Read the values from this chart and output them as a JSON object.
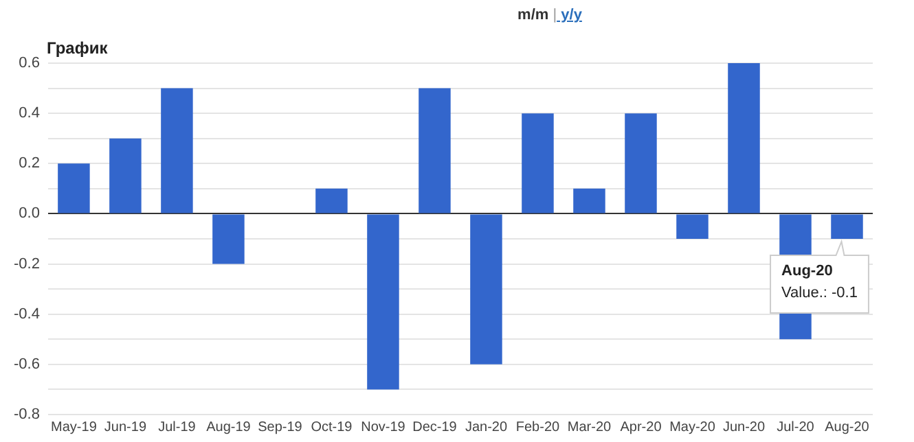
{
  "chart_data": {
    "type": "bar",
    "title": "График",
    "categories": [
      "May-19",
      "Jun-19",
      "Jul-19",
      "Aug-19",
      "Sep-19",
      "Oct-19",
      "Nov-19",
      "Dec-19",
      "Jan-20",
      "Feb-20",
      "Mar-20",
      "Apr-20",
      "May-20",
      "Jun-20",
      "Jul-20",
      "Aug-20"
    ],
    "values": [
      0.2,
      0.3,
      0.5,
      -0.2,
      0,
      0.1,
      -0.7,
      0.5,
      -0.6,
      0.4,
      0.1,
      0.4,
      -0.1,
      0.6,
      -0.5,
      -0.1
    ],
    "color": "#3366cc",
    "ylim": [
      -0.8,
      0.6
    ],
    "yticks": [
      -0.8,
      {
        "value": -0.7,
        "label": null
      },
      -0.6,
      {
        "value": -0.5,
        "label": null
      },
      -0.4,
      {
        "value": -0.3,
        "label": null
      },
      -0.2,
      {
        "value": -0.1,
        "label": null
      },
      {
        "value": 0,
        "label": "0.0"
      },
      {
        "value": 0.1,
        "label": null
      },
      0.2,
      {
        "value": 0.3,
        "label": null
      },
      0.4,
      {
        "value": 0.5,
        "label": null
      },
      0.6
    ],
    "grid": "y",
    "legend": false,
    "annotations": [
      "m/m | y/y",
      {
        "text": "Aug-20\nValue.: -0.1",
        "x": "Aug-20",
        "y": -0.1
      }
    ]
  }
}
